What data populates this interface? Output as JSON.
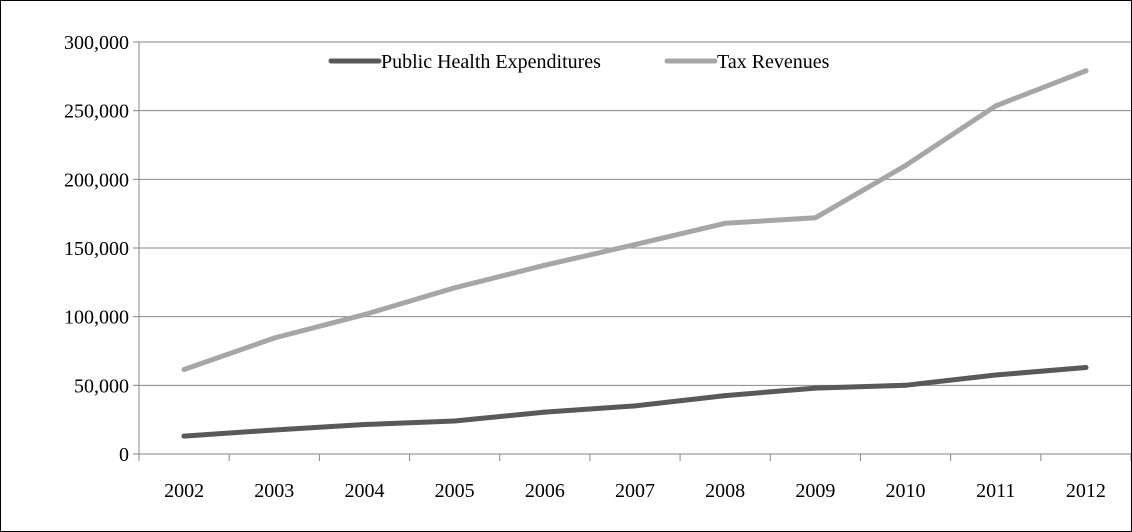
{
  "chart_data": {
    "type": "line",
    "title": "",
    "xlabel": "",
    "ylabel": "",
    "categories": [
      "2002",
      "2003",
      "2004",
      "2005",
      "2006",
      "2007",
      "2008",
      "2009",
      "2010",
      "2011",
      "2012"
    ],
    "y_tick_labels": [
      "0",
      "50,000",
      "100,000",
      "150,000",
      "200,000",
      "250,000",
      "300,000"
    ],
    "y_ticks": [
      0,
      50000,
      100000,
      150000,
      200000,
      250000,
      300000
    ],
    "ylim": [
      0,
      300000
    ],
    "grid": true,
    "legend_position": "top-center",
    "series": [
      {
        "name": "Public Health Expenditures",
        "color": "#595959",
        "values": [
          13000,
          17500,
          21500,
          24000,
          30500,
          35000,
          42500,
          48000,
          50000,
          57500,
          63000
        ]
      },
      {
        "name": "Tax Revenues",
        "color": "#a6a6a6",
        "values": [
          61500,
          84500,
          101500,
          121000,
          137500,
          152500,
          168000,
          172000,
          210000,
          253500,
          279000
        ]
      }
    ]
  }
}
